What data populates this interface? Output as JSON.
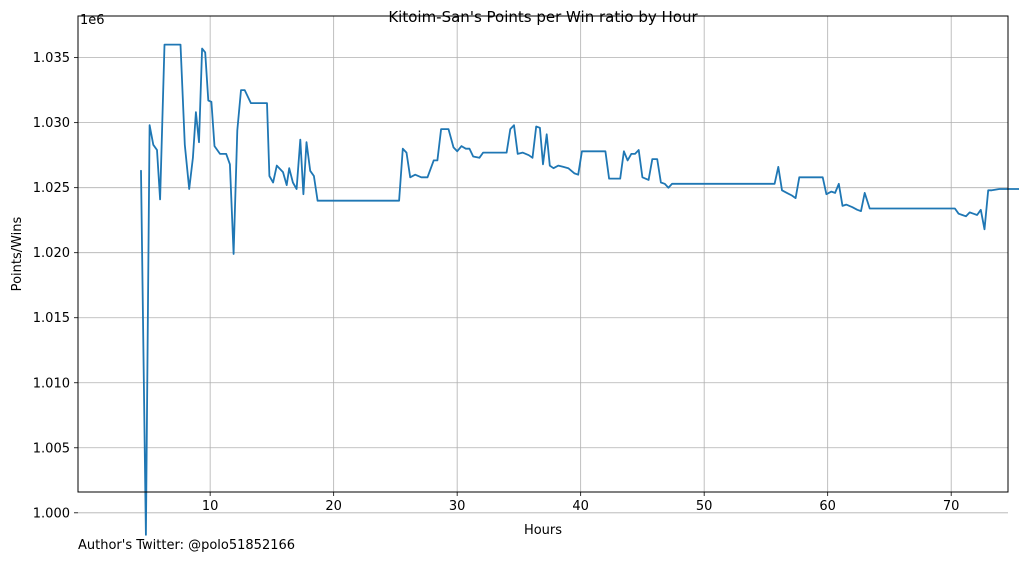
{
  "footer": {
    "note": "Author's Twitter: @polo51852166"
  },
  "chart_data": {
    "type": "line",
    "title": "Kitoim-San's Points per Win ratio by Hour",
    "xlabel": "Hours",
    "ylabel": "Points/Wins",
    "y_offset_label": "1e6",
    "xlim": [
      -0.7,
      74.6
    ],
    "ylim": [
      1001600,
      1038200
    ],
    "y_scale": 1000000,
    "xticks": [
      10,
      20,
      30,
      40,
      50,
      60,
      70
    ],
    "xtick_labels": [
      "10",
      "20",
      "30",
      "40",
      "50",
      "60",
      "70"
    ],
    "yticks": [
      1000000,
      1005000,
      1010000,
      1015000,
      1020000,
      1025000,
      1030000,
      1035000
    ],
    "ytick_labels": [
      "1.000",
      "1.005",
      "1.010",
      "1.015",
      "1.020",
      "1.025",
      "1.030",
      "1.035"
    ],
    "grid": true,
    "line_color": "#1f77b4",
    "series": [
      {
        "values": [
          [
            4.4,
            1026300
          ],
          [
            4.8,
            998300
          ],
          [
            5.1,
            1029800
          ],
          [
            5.4,
            1028300
          ],
          [
            5.7,
            1027900
          ],
          [
            5.95,
            1024100
          ],
          [
            6.3,
            1036000
          ],
          [
            7.6,
            1036000
          ],
          [
            7.95,
            1028300
          ],
          [
            8.3,
            1024900
          ],
          [
            8.6,
            1027300
          ],
          [
            8.85,
            1030800
          ],
          [
            9.1,
            1028500
          ],
          [
            9.35,
            1035700
          ],
          [
            9.6,
            1035400
          ],
          [
            9.85,
            1031700
          ],
          [
            10.1,
            1031600
          ],
          [
            10.35,
            1028200
          ],
          [
            10.8,
            1027600
          ],
          [
            11.3,
            1027600
          ],
          [
            11.6,
            1026800
          ],
          [
            11.9,
            1019900
          ],
          [
            12.2,
            1029400
          ],
          [
            12.5,
            1032500
          ],
          [
            12.8,
            1032500
          ],
          [
            13.3,
            1031500
          ],
          [
            14.6,
            1031500
          ],
          [
            14.8,
            1025900
          ],
          [
            15.1,
            1025400
          ],
          [
            15.4,
            1026700
          ],
          [
            15.9,
            1026200
          ],
          [
            16.2,
            1025200
          ],
          [
            16.4,
            1026500
          ],
          [
            16.7,
            1025400
          ],
          [
            17.0,
            1024900
          ],
          [
            17.3,
            1028700
          ],
          [
            17.55,
            1024500
          ],
          [
            17.8,
            1028500
          ],
          [
            18.1,
            1026300
          ],
          [
            18.4,
            1025900
          ],
          [
            18.7,
            1024000
          ],
          [
            25.3,
            1024000
          ],
          [
            25.6,
            1028000
          ],
          [
            25.9,
            1027700
          ],
          [
            26.2,
            1025800
          ],
          [
            26.6,
            1026000
          ],
          [
            27.1,
            1025800
          ],
          [
            27.6,
            1025800
          ],
          [
            28.1,
            1027100
          ],
          [
            28.4,
            1027100
          ],
          [
            28.7,
            1029500
          ],
          [
            29.3,
            1029500
          ],
          [
            29.7,
            1028100
          ],
          [
            30.0,
            1027800
          ],
          [
            30.35,
            1028200
          ],
          [
            30.7,
            1028000
          ],
          [
            31.0,
            1028000
          ],
          [
            31.3,
            1027400
          ],
          [
            31.8,
            1027300
          ],
          [
            32.1,
            1027700
          ],
          [
            34.0,
            1027700
          ],
          [
            34.3,
            1029500
          ],
          [
            34.6,
            1029800
          ],
          [
            34.9,
            1027600
          ],
          [
            35.3,
            1027700
          ],
          [
            35.8,
            1027500
          ],
          [
            36.1,
            1027300
          ],
          [
            36.4,
            1029700
          ],
          [
            36.7,
            1029600
          ],
          [
            36.95,
            1026800
          ],
          [
            37.25,
            1029100
          ],
          [
            37.5,
            1026700
          ],
          [
            37.8,
            1026500
          ],
          [
            38.2,
            1026700
          ],
          [
            38.6,
            1026600
          ],
          [
            39.0,
            1026500
          ],
          [
            39.5,
            1026100
          ],
          [
            39.8,
            1026000
          ],
          [
            40.1,
            1027800
          ],
          [
            42.0,
            1027800
          ],
          [
            42.3,
            1025700
          ],
          [
            43.2,
            1025700
          ],
          [
            43.5,
            1027800
          ],
          [
            43.8,
            1027100
          ],
          [
            44.1,
            1027600
          ],
          [
            44.4,
            1027600
          ],
          [
            44.7,
            1027900
          ],
          [
            45.0,
            1025800
          ],
          [
            45.5,
            1025600
          ],
          [
            45.8,
            1027200
          ],
          [
            46.2,
            1027200
          ],
          [
            46.5,
            1025400
          ],
          [
            46.8,
            1025300
          ],
          [
            47.1,
            1025000
          ],
          [
            47.4,
            1025300
          ],
          [
            55.7,
            1025300
          ],
          [
            56.0,
            1026600
          ],
          [
            56.3,
            1024800
          ],
          [
            56.7,
            1024600
          ],
          [
            57.1,
            1024400
          ],
          [
            57.4,
            1024200
          ],
          [
            57.7,
            1025800
          ],
          [
            59.6,
            1025800
          ],
          [
            59.9,
            1024500
          ],
          [
            60.3,
            1024700
          ],
          [
            60.6,
            1024600
          ],
          [
            60.9,
            1025300
          ],
          [
            61.2,
            1023600
          ],
          [
            61.5,
            1023700
          ],
          [
            62.0,
            1023500
          ],
          [
            62.4,
            1023300
          ],
          [
            62.7,
            1023200
          ],
          [
            63.0,
            1024600
          ],
          [
            63.4,
            1023400
          ],
          [
            70.3,
            1023400
          ],
          [
            70.6,
            1023000
          ],
          [
            70.9,
            1022900
          ],
          [
            71.2,
            1022800
          ],
          [
            71.5,
            1023100
          ],
          [
            71.8,
            1023000
          ],
          [
            72.1,
            1022900
          ],
          [
            72.4,
            1023300
          ],
          [
            72.7,
            1021800
          ],
          [
            73.0,
            1024800
          ],
          [
            73.3,
            1024800
          ],
          [
            73.9,
            1024900
          ],
          [
            77.6,
            1024900
          ]
        ]
      }
    ]
  }
}
